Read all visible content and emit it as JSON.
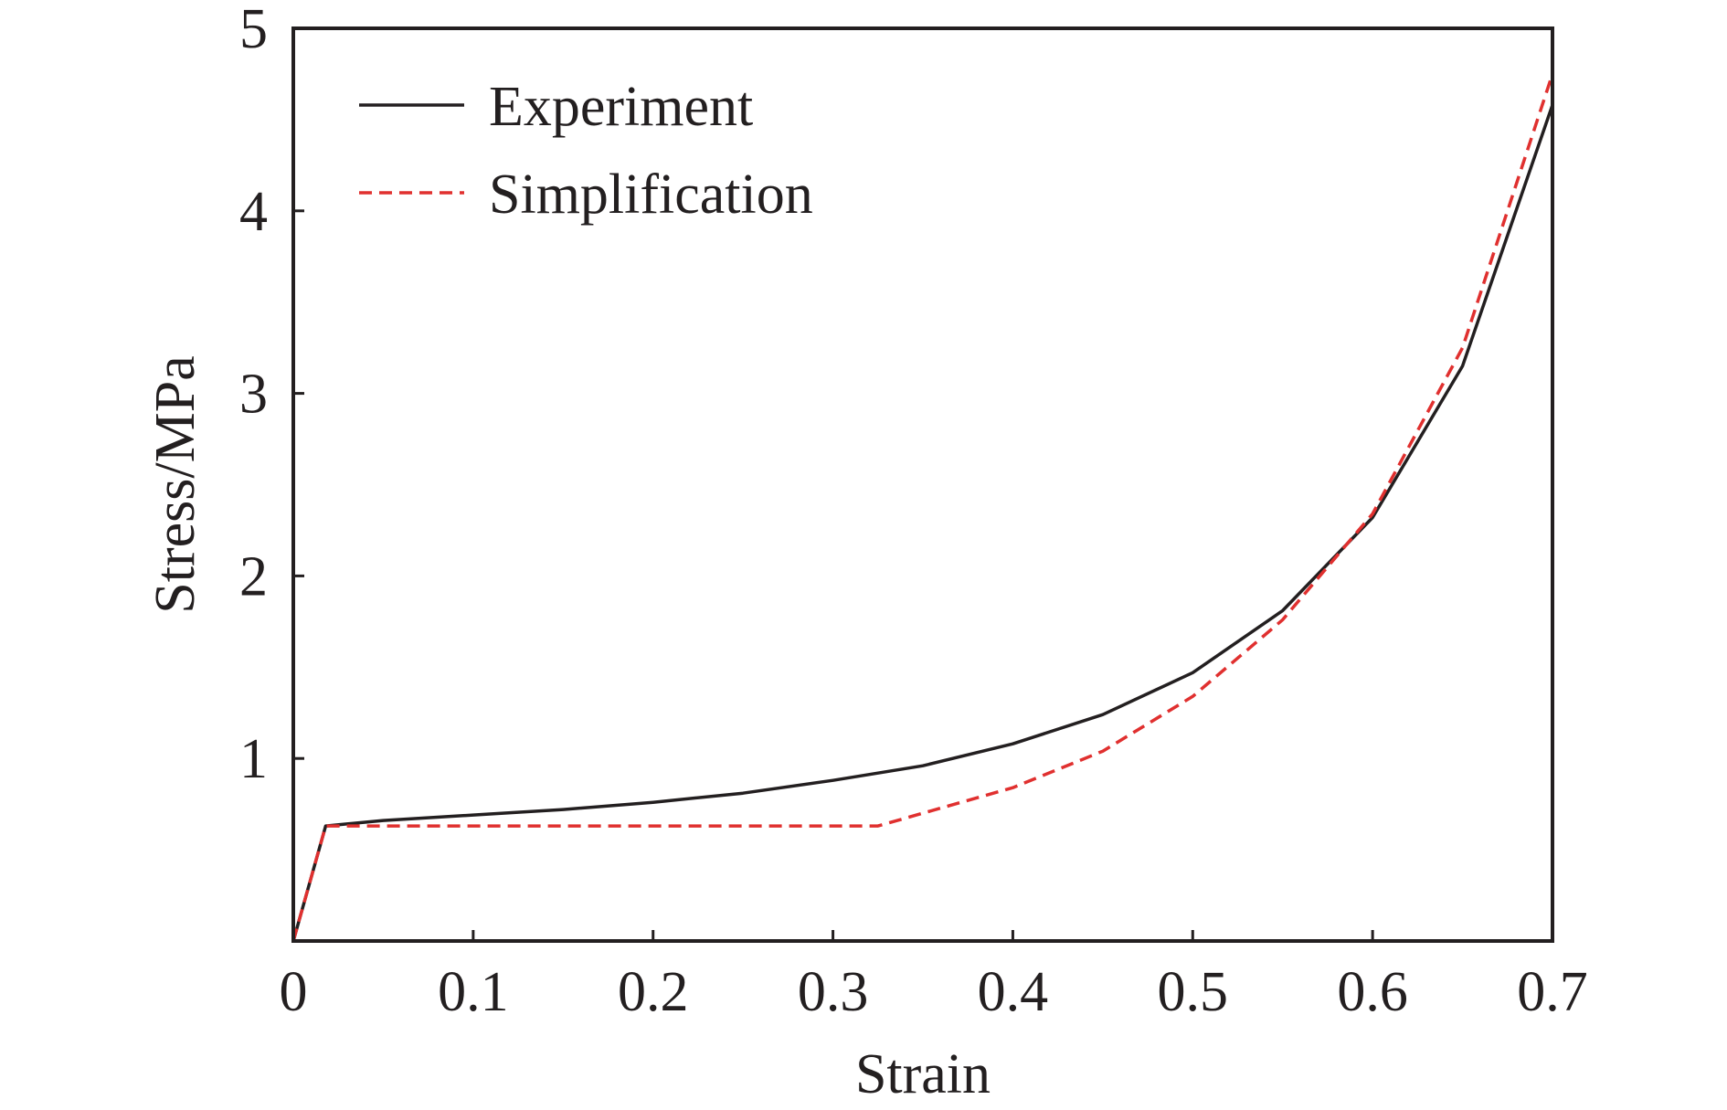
{
  "chart_data": {
    "type": "line",
    "title": "",
    "xlabel": "Strain",
    "ylabel": "Stress/MPa",
    "xlim": [
      0,
      0.7
    ],
    "ylim": [
      0,
      5
    ],
    "xticks": [
      0,
      0.1,
      0.2,
      0.3,
      0.4,
      0.5,
      0.6,
      0.7
    ],
    "xtick_labels": [
      "0",
      "0.1",
      "0.2",
      "0.3",
      "0.4",
      "0.5",
      "0.6",
      "0.7"
    ],
    "yticks": [
      1,
      2,
      3,
      4,
      5
    ],
    "ytick_labels": [
      "1",
      "2",
      "3",
      "4",
      "5"
    ],
    "grid": false,
    "legend_position": "top-left",
    "series": [
      {
        "name": "Experiment",
        "color": "#231f20",
        "style": "solid",
        "x": [
          0,
          0.018,
          0.05,
          0.1,
          0.15,
          0.2,
          0.25,
          0.3,
          0.35,
          0.4,
          0.45,
          0.5,
          0.55,
          0.6,
          0.65,
          0.7
        ],
        "y": [
          0,
          0.63,
          0.66,
          0.69,
          0.72,
          0.76,
          0.81,
          0.88,
          0.96,
          1.08,
          1.24,
          1.47,
          1.81,
          2.32,
          3.15,
          4.58
        ]
      },
      {
        "name": "Simplification",
        "color": "#e0302f",
        "style": "dashed",
        "x": [
          0,
          0.018,
          0.1,
          0.2,
          0.3,
          0.325,
          0.35,
          0.4,
          0.45,
          0.5,
          0.55,
          0.6,
          0.65,
          0.7
        ],
        "y": [
          0,
          0.63,
          0.63,
          0.63,
          0.63,
          0.63,
          0.7,
          0.84,
          1.04,
          1.34,
          1.76,
          2.34,
          3.25,
          4.75
        ]
      }
    ]
  }
}
